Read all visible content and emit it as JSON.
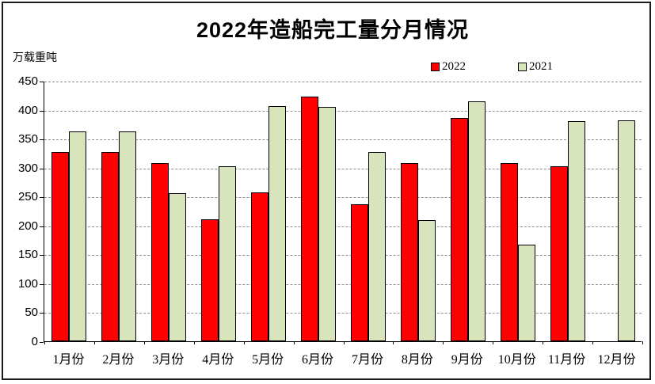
{
  "title": "2022年造船完工量分月情况",
  "unit_label": "万载重吨",
  "legend": {
    "entries": [
      "2022",
      "2021"
    ]
  },
  "chart_data": {
    "type": "bar",
    "title": "2022年造船完工量分月情况",
    "ylabel": "万载重吨",
    "xlabel": "",
    "categories": [
      "1月份",
      "2月份",
      "3月份",
      "4月份",
      "5月份",
      "6月份",
      "7月份",
      "8月份",
      "9月份",
      "10月份",
      "11月份",
      "12月份"
    ],
    "series": [
      {
        "name": "2022",
        "color": "#ff0000",
        "values": [
          327,
          327,
          308,
          210,
          257,
          422,
          236,
          308,
          386,
          308,
          302,
          null
        ]
      },
      {
        "name": "2021",
        "color": "#d8e4bc",
        "values": [
          362,
          362,
          256,
          302,
          406,
          405,
          327,
          209,
          414,
          167,
          380,
          382
        ]
      }
    ],
    "ylim": [
      0,
      450
    ],
    "ytick_step": 50,
    "grid": "horizontal-dashed",
    "legend_position": "top-right",
    "bar_border_color": "#000000"
  }
}
